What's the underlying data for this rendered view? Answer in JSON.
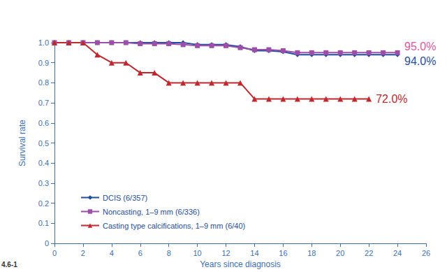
{
  "chart_data": {
    "type": "line",
    "figure_label": "4.6-1",
    "xlabel": "Years since diagnosis",
    "ylabel": "Survival rate",
    "xlim": [
      0,
      26
    ],
    "xticks": [
      0,
      2,
      4,
      6,
      8,
      10,
      12,
      14,
      16,
      18,
      20,
      22,
      24,
      26
    ],
    "ylim": [
      0,
      1
    ],
    "yticks": [
      0,
      0.1,
      0.2,
      0.3,
      0.4,
      0.5,
      0.6,
      0.7,
      0.8,
      0.9,
      {
        "value": 1,
        "label": "1.0"
      }
    ],
    "grid": false,
    "legend": "bottom-left",
    "series": [
      {
        "name": "DCIS (6/357)",
        "color": "#1f4e9f",
        "marker": "diamond",
        "x": [
          0,
          1,
          2,
          3,
          4,
          5,
          6,
          7,
          8,
          9,
          10,
          11,
          12,
          13,
          14,
          15,
          16,
          17,
          18,
          19,
          20,
          21,
          22,
          23,
          24
        ],
        "values": [
          1,
          1,
          1,
          1,
          1,
          1,
          1,
          1,
          1,
          1,
          0.99,
          0.99,
          0.99,
          0.98,
          0.96,
          0.96,
          0.955,
          0.94,
          0.94,
          0.94,
          0.94,
          0.94,
          0.94,
          0.94,
          0.94
        ]
      },
      {
        "name": "Noncasting, 1–9 mm (6/336)",
        "color": "#9b4fa8",
        "marker": "square",
        "x": [
          0,
          1,
          2,
          3,
          4,
          5,
          6,
          7,
          8,
          9,
          10,
          11,
          12,
          13,
          14,
          15,
          16,
          17,
          18,
          19,
          20,
          21,
          22,
          23,
          24
        ],
        "values": [
          1,
          1,
          1,
          1,
          1,
          1,
          0.995,
          0.995,
          0.995,
          0.99,
          0.985,
          0.985,
          0.985,
          0.975,
          0.965,
          0.965,
          0.96,
          0.95,
          0.95,
          0.95,
          0.95,
          0.95,
          0.95,
          0.95,
          0.95
        ]
      },
      {
        "name": "Casting type calcifications, 1–9 mm (6/40)",
        "color": "#c0282d",
        "marker": "triangle",
        "x": [
          0,
          1,
          2,
          3,
          4,
          5,
          6,
          7,
          8,
          9,
          10,
          11,
          12,
          13,
          14,
          15,
          16,
          17,
          18,
          19,
          20,
          21,
          22
        ],
        "values": [
          1,
          1,
          1,
          0.94,
          0.9,
          0.9,
          0.85,
          0.85,
          0.8,
          0.8,
          0.8,
          0.8,
          0.8,
          0.8,
          0.72,
          0.72,
          0.72,
          0.72,
          0.72,
          0.72,
          0.72,
          0.72,
          0.72
        ]
      }
    ],
    "annotations": [
      {
        "text": "95.0%",
        "series": "Noncasting, 1–9 mm (6/336)",
        "color": "#e0589c"
      },
      {
        "text": "94.0%",
        "series": "DCIS (6/357)",
        "color": "#1f4e9f"
      },
      {
        "text": "72.0%",
        "series": "Casting type calcifications, 1–9 mm (6/40)",
        "color": "#c0282d"
      }
    ]
  }
}
